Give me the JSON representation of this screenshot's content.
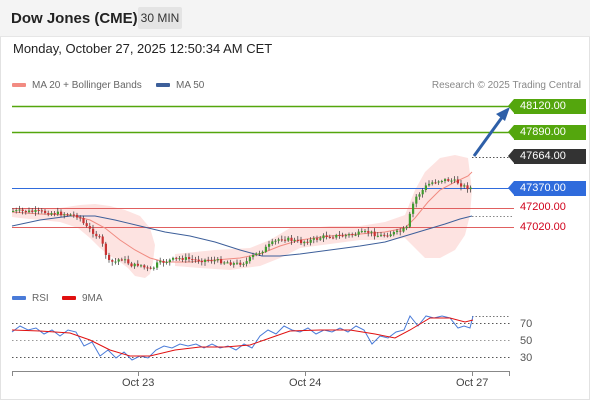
{
  "header": {
    "title": "Dow Jones (CME)",
    "timeframe": "30 MIN"
  },
  "datetime": "Monday, October 27, 2025 12:50:34 AM CET",
  "legend": {
    "bollinger": {
      "label": "MA 20 + Bollinger Bands",
      "color": "#f28b82"
    },
    "ma50": {
      "label": "MA 50",
      "color": "#3d5f9a"
    }
  },
  "credit": "Research © 2025 Trading Central",
  "levels": [
    {
      "value": "48120.00",
      "kind": "resistance",
      "color": "#54a60d"
    },
    {
      "value": "47890.00",
      "kind": "resistance",
      "color": "#54a60d"
    },
    {
      "value": "47664.00",
      "kind": "last",
      "color": "#333333"
    },
    {
      "value": "47370.00",
      "kind": "pivot",
      "color": "#2f6bdc"
    },
    {
      "value": "47200.00",
      "kind": "support",
      "color": "#d0021b"
    },
    {
      "value": "47020.00",
      "kind": "support",
      "color": "#d0021b"
    }
  ],
  "rsi": {
    "legend": [
      {
        "label": "RSI",
        "color": "#4a7bd8"
      },
      {
        "label": "9MA",
        "color": "#e01010"
      }
    ],
    "ticks": [
      "70",
      "50",
      "30"
    ]
  },
  "xaxis": {
    "labels": [
      "Oct 23",
      "Oct 24",
      "Oct 27"
    ]
  }
}
